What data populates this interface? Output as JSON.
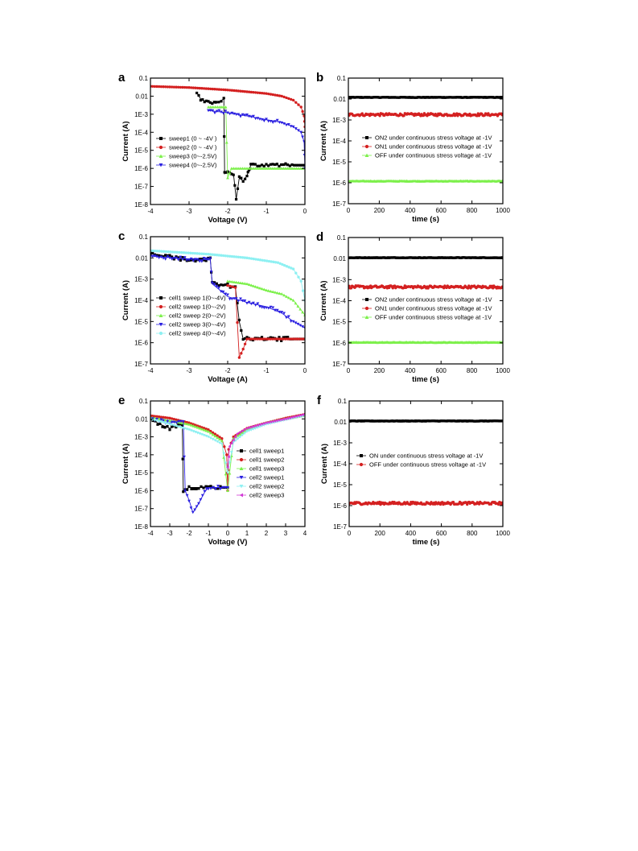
{
  "colors": {
    "black": "#000000",
    "red": "#d42020",
    "green": "#7cf04a",
    "blue": "#2a1fe0",
    "cyan": "#8ef0f2",
    "magenta": "#d23ad6"
  },
  "panels": [
    {
      "letter": "a",
      "xlabel": "Voltage (V)",
      "ylabel": "Current (A)",
      "xticks": [
        "-4",
        "-3",
        "-2",
        "-1",
        "0"
      ],
      "yticks": [
        "1E-8",
        "1E-7",
        "1E-6",
        "1E-5",
        "1E-4",
        "1E-3",
        "0.01",
        "0.1"
      ],
      "legend": [
        "sweep1 (0 ~ -4V )",
        "sweep2 (0 ~ -4V )",
        "sweep3 (0~-2.5V)",
        "sweep4 (0~-2.5V)"
      ]
    },
    {
      "letter": "b",
      "xlabel": "time (s)",
      "ylabel": "Current (A)",
      "xticks": [
        "0",
        "200",
        "400",
        "600",
        "800",
        "1000"
      ],
      "yticks": [
        "1E-7",
        "1E-6",
        "1E-5",
        "1E-4",
        "1E-3",
        "0.01",
        "0.1"
      ],
      "legend": [
        "ON2 under continuous stress voltage at -1V",
        "ON1 under continuous stress voltage at -1V",
        "OFF under continuous stress voltage at -1V"
      ]
    },
    {
      "letter": "c",
      "xlabel": "Voltage (A)",
      "ylabel": "Current (A)",
      "xticks": [
        "-4",
        "-3",
        "-2",
        "-1",
        "0"
      ],
      "yticks": [
        "1E-7",
        "1E-6",
        "1E-5",
        "1E-4",
        "1E-3",
        "0.01",
        "0.1"
      ],
      "legend": [
        "cell1 sweep 1(0~-4V)",
        "cell2 sweep 1(0~-2V)",
        "cell2 sweep 2(0~-2V)",
        "cell2 sweep 3(0~-4V)",
        "cell2 sweep 4(0~-4V)"
      ]
    },
    {
      "letter": "d",
      "xlabel": "time (s)",
      "ylabel": "Current (A)",
      "xticks": [
        "0",
        "200",
        "400",
        "600",
        "800",
        "1000"
      ],
      "yticks": [
        "1E-7",
        "1E-6",
        "1E-5",
        "1E-4",
        "1E-3",
        "0.01",
        "0.1"
      ],
      "legend": [
        "ON2 under continuous stress voltage at -1V",
        "ON1 under continuous stress voltage at -1V",
        "OFF under continuous stress voltage at -1V"
      ]
    },
    {
      "letter": "e",
      "xlabel": "Voltage (V)",
      "ylabel": "Current (A)",
      "xticks": [
        "-4",
        "-3",
        "-2",
        "-1",
        "0",
        "1",
        "2",
        "3",
        "4"
      ],
      "yticks": [
        "1E-8",
        "1E-7",
        "1E-6",
        "1E-5",
        "1E-4",
        "1E-3",
        "0.01",
        "0.1"
      ],
      "legend": [
        "cell1 sweep1",
        "cell1 sweep2",
        "cell1 sweep3",
        "cell2 sweep1",
        "cell2 sweep2",
        "cell2 sweep3"
      ]
    },
    {
      "letter": "f",
      "xlabel": "time (s)",
      "ylabel": "Current (A)",
      "xticks": [
        "0",
        "200",
        "400",
        "600",
        "800",
        "1000"
      ],
      "yticks": [
        "1E-7",
        "1E-6",
        "1E-5",
        "1E-4",
        "1E-3",
        "0.01",
        "0.1"
      ],
      "legend": [
        "ON under continuous stress voltage at -1V",
        "OFF under continuous stress voltage at -1V"
      ]
    }
  ],
  "chart_data": [
    {
      "panel": "a",
      "type": "scatter",
      "xscale": "linear",
      "yscale": "log",
      "xlim": [
        -4,
        0
      ],
      "ylim": [
        1e-08,
        0.1
      ],
      "legend_position": "left-center",
      "series": [
        {
          "name": "sweep1 (0 ~ -4V )",
          "color": "black",
          "marker": "square",
          "kind": "iv",
          "points": [
            [
              0,
              1.5e-06
            ],
            [
              -0.5,
              1.5e-06
            ],
            [
              -1,
              1.5e-06
            ],
            [
              -1.4,
              1.5e-06
            ],
            [
              -1.45,
              8e-07
            ],
            [
              -1.5,
              4e-07
            ],
            [
              -1.6,
              2e-07
            ],
            [
              -1.7,
              3e-07
            ],
            [
              -1.78,
              2e-08
            ],
            [
              -1.85,
              5e-07
            ],
            [
              -2.0,
              7e-07
            ],
            [
              -2.08,
              5e-07
            ],
            [
              -2.1,
              0.007
            ],
            [
              -2.3,
              0.004
            ],
            [
              -2.5,
              0.0045
            ],
            [
              -2.7,
              0.007
            ],
            [
              -2.8,
              0.015
            ]
          ]
        },
        {
          "name": "sweep2 (0 ~ -4V )",
          "color": "red",
          "marker": "circle",
          "kind": "iv",
          "points": [
            [
              0,
              0.0002
            ],
            [
              -0.02,
              0.0008
            ],
            [
              -0.1,
              0.0025
            ],
            [
              -0.3,
              0.006
            ],
            [
              -0.6,
              0.01
            ],
            [
              -1,
              0.014
            ],
            [
              -2,
              0.022
            ],
            [
              -3,
              0.03
            ],
            [
              -4,
              0.035
            ]
          ]
        },
        {
          "name": "sweep3 (0~-2.5V)",
          "color": "green",
          "marker": "triangle-up",
          "kind": "iv",
          "points": [
            [
              0,
              1e-06
            ],
            [
              -0.5,
              1e-06
            ],
            [
              -1,
              1e-06
            ],
            [
              -1.5,
              1e-06
            ],
            [
              -1.9,
              1e-06
            ],
            [
              -2.0,
              3e-07
            ],
            [
              -2.05,
              0.0025
            ],
            [
              -2.2,
              0.0025
            ],
            [
              -2.5,
              0.0025
            ]
          ]
        },
        {
          "name": "sweep4 (0~-2.5V)",
          "color": "blue",
          "marker": "triangle-down",
          "kind": "iv",
          "points": [
            [
              0,
              1e-06
            ],
            [
              -0.02,
              3e-05
            ],
            [
              -0.1,
              0.0001
            ],
            [
              -0.3,
              0.0002
            ],
            [
              -0.6,
              0.00035
            ],
            [
              -1,
              0.0005
            ],
            [
              -1.5,
              0.0008
            ],
            [
              -2,
              0.0012
            ],
            [
              -2.5,
              0.0016
            ]
          ]
        }
      ]
    },
    {
      "panel": "b",
      "type": "scatter",
      "xscale": "linear",
      "yscale": "log",
      "xlim": [
        0,
        1000
      ],
      "ylim": [
        1e-07,
        0.1
      ],
      "legend_position": "center-left",
      "series": [
        {
          "name": "ON2 under continuous stress voltage at -1V",
          "color": "black",
          "marker": "square",
          "kind": "stress",
          "level": 0.012
        },
        {
          "name": "ON1 under continuous stress voltage at -1V",
          "color": "red",
          "marker": "circle",
          "kind": "stress",
          "level": 0.0018
        },
        {
          "name": "OFF under continuous stress voltage at -1V",
          "color": "green",
          "marker": "triangle-up",
          "kind": "stress",
          "level": 1.2e-06
        }
      ]
    },
    {
      "panel": "c",
      "type": "scatter",
      "xscale": "linear",
      "yscale": "log",
      "xlim": [
        -4,
        0
      ],
      "ylim": [
        1e-07,
        0.1
      ],
      "legend_position": "left-center",
      "series": [
        {
          "name": "cell1 sweep 1(0~-4V)",
          "color": "black",
          "marker": "square",
          "kind": "iv",
          "points": [
            [
              0,
              1.5e-06
            ],
            [
              -0.5,
              1.5e-06
            ],
            [
              -1,
              1.5e-06
            ],
            [
              -1.4,
              1.5e-06
            ],
            [
              -1.6,
              1.5e-06
            ],
            [
              -1.7,
              1e-05
            ],
            [
              -1.8,
              0.0004
            ],
            [
              -2,
              0.0005
            ],
            [
              -2.4,
              0.0006
            ],
            [
              -2.45,
              0.009
            ],
            [
              -3,
              0.008
            ],
            [
              -3.5,
              0.011
            ],
            [
              -4,
              0.016
            ]
          ]
        },
        {
          "name": "cell2 sweep 1(0~-2V)",
          "color": "red",
          "marker": "circle",
          "kind": "iv",
          "points": [
            [
              0,
              1.5e-06
            ],
            [
              -1,
              1.5e-06
            ],
            [
              -1.5,
              1.5e-06
            ],
            [
              -1.6,
              5e-07
            ],
            [
              -1.7,
              2e-07
            ],
            [
              -1.8,
              0.0004
            ],
            [
              -2,
              0.0005
            ]
          ]
        },
        {
          "name": "cell2 sweep 2(0~-2V)",
          "color": "green",
          "marker": "triangle-up",
          "kind": "iv",
          "points": [
            [
              0,
              2e-05
            ],
            [
              -0.3,
              0.0001
            ],
            [
              -0.6,
              0.0002
            ],
            [
              -1,
              0.0003
            ],
            [
              -1.5,
              0.0006
            ],
            [
              -2,
              0.0008
            ]
          ]
        },
        {
          "name": "cell2 sweep 3(0~-4V)",
          "color": "blue",
          "marker": "triangle-down",
          "kind": "iv",
          "points": [
            [
              0,
              5e-06
            ],
            [
              -0.3,
              1e-05
            ],
            [
              -0.6,
              2.5e-05
            ],
            [
              -1,
              5e-05
            ],
            [
              -1.5,
              8e-05
            ],
            [
              -2,
              0.00015
            ],
            [
              -2.4,
              0.0006
            ],
            [
              -2.45,
              0.008
            ],
            [
              -3,
              0.009
            ],
            [
              -4,
              0.012
            ]
          ]
        },
        {
          "name": "cell2 sweep 4(0~-4V)",
          "color": "cyan",
          "marker": "circle",
          "kind": "iv",
          "points": [
            [
              0,
              0.0001
            ],
            [
              -0.1,
              0.0008
            ],
            [
              -0.3,
              0.003
            ],
            [
              -0.7,
              0.006
            ],
            [
              -1.5,
              0.01
            ],
            [
              -2.5,
              0.015
            ],
            [
              -4,
              0.022
            ]
          ]
        }
      ]
    },
    {
      "panel": "d",
      "type": "scatter",
      "xscale": "linear",
      "yscale": "log",
      "xlim": [
        0,
        1000
      ],
      "ylim": [
        1e-07,
        0.1
      ],
      "legend_position": "center-left",
      "series": [
        {
          "name": "ON2 under continuous stress voltage at -1V",
          "color": "black",
          "marker": "square",
          "kind": "stress",
          "level": 0.011
        },
        {
          "name": "ON1 under continuous stress voltage at -1V",
          "color": "red",
          "marker": "circle",
          "kind": "stress",
          "level": 0.00045
        },
        {
          "name": "OFF under continuous stress voltage at -1V",
          "color": "green",
          "marker": "triangle-up",
          "kind": "stress",
          "level": 1.05e-06
        }
      ]
    },
    {
      "panel": "e",
      "type": "scatter",
      "xscale": "linear",
      "yscale": "log",
      "xlim": [
        -4,
        4
      ],
      "ylim": [
        1e-08,
        0.1
      ],
      "legend_position": "right-center",
      "series": [
        {
          "name": "cell1 sweep1",
          "color": "black",
          "marker": "square",
          "kind": "iv",
          "points": [
            [
              0,
              1.5e-06
            ],
            [
              -0.5,
              1.5e-06
            ],
            [
              -1,
              1.5e-06
            ],
            [
              -1.5,
              1.5e-06
            ],
            [
              -2,
              1.5e-06
            ],
            [
              -2.3,
              1e-06
            ],
            [
              -2.35,
              0.005
            ],
            [
              -3,
              0.003
            ],
            [
              -3.5,
              0.005
            ],
            [
              -4,
              0.01
            ]
          ]
        },
        {
          "name": "cell1 sweep2",
          "color": "red",
          "marker": "circle",
          "kind": "iv",
          "points": [
            [
              -4,
              0.015
            ],
            [
              -3,
              0.011
            ],
            [
              -2,
              0.006
            ],
            [
              -1,
              0.0025
            ],
            [
              -0.3,
              0.0008
            ],
            [
              -0.05,
              0.0001
            ],
            [
              0,
              1e-06
            ],
            [
              0.05,
              0.0002
            ],
            [
              0.3,
              0.001
            ],
            [
              1,
              0.003
            ],
            [
              2,
              0.006
            ],
            [
              3,
              0.011
            ],
            [
              4,
              0.018
            ]
          ]
        },
        {
          "name": "cell1 sweep3",
          "color": "green",
          "marker": "triangle-up",
          "kind": "iv",
          "points": [
            [
              -4,
              0.012
            ],
            [
              -3,
              0.008
            ],
            [
              -2,
              0.005
            ],
            [
              -1,
              0.002
            ],
            [
              -0.3,
              0.0006
            ],
            [
              0,
              1e-06
            ],
            [
              0.3,
              0.0008
            ],
            [
              1,
              0.0025
            ],
            [
              2,
              0.006
            ],
            [
              3,
              0.01
            ],
            [
              4,
              0.016
            ]
          ]
        },
        {
          "name": "cell2 sweep1",
          "color": "blue",
          "marker": "triangle-down",
          "kind": "iv",
          "points": [
            [
              0,
              1.5e-06
            ],
            [
              -0.5,
              1.5e-06
            ],
            [
              -1,
              1.5e-06
            ],
            [
              -1.2,
              8e-07
            ],
            [
              -1.5,
              2e-07
            ],
            [
              -1.8,
              6e-08
            ],
            [
              -2,
              3e-07
            ],
            [
              -2.2,
              1e-06
            ],
            [
              -2.3,
              0.008
            ],
            [
              -3,
              0.006
            ],
            [
              -4,
              0.01
            ]
          ]
        },
        {
          "name": "cell2 sweep2",
          "color": "cyan",
          "marker": "triangle-down",
          "kind": "iv",
          "points": [
            [
              -4,
              0.01
            ],
            [
              -3,
              0.005
            ],
            [
              -2,
              0.0025
            ],
            [
              -1,
              0.001
            ],
            [
              -0.3,
              0.0004
            ],
            [
              0,
              1e-05
            ],
            [
              0.3,
              0.0005
            ],
            [
              1,
              0.002
            ],
            [
              2,
              0.005
            ],
            [
              3,
              0.009
            ],
            [
              4,
              0.015
            ]
          ]
        },
        {
          "name": "cell2 sweep3",
          "color": "magenta",
          "marker": "triangle-left",
          "kind": "iv",
          "points": [
            [
              0,
              2e-05
            ],
            [
              0.1,
              0.0003
            ],
            [
              0.5,
              0.0015
            ],
            [
              1,
              0.003
            ],
            [
              2,
              0.006
            ],
            [
              3,
              0.01
            ],
            [
              4,
              0.018
            ]
          ]
        }
      ]
    },
    {
      "panel": "f",
      "type": "scatter",
      "xscale": "linear",
      "yscale": "log",
      "xlim": [
        0,
        1000
      ],
      "ylim": [
        1e-07,
        0.1
      ],
      "legend_position": "center-left",
      "series": [
        {
          "name": "ON under continuous stress voltage at -1V",
          "color": "black",
          "marker": "square",
          "kind": "stress",
          "level": 0.011
        },
        {
          "name": "OFF under continuous stress voltage at -1V",
          "color": "red",
          "marker": "circle",
          "kind": "stress",
          "level": 1.3e-06
        }
      ]
    }
  ]
}
